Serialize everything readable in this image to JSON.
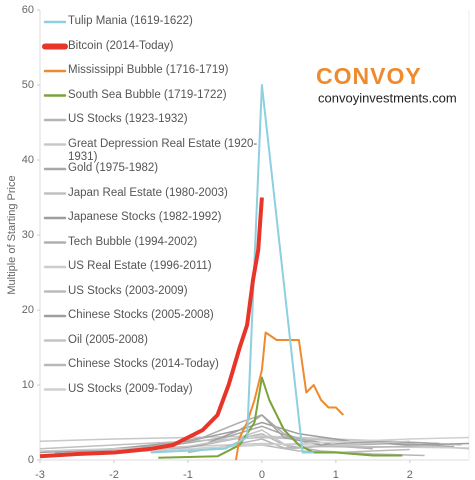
{
  "chart_data": {
    "type": "line",
    "ylabel": "Multiple of Starting Price",
    "annotations": [
      "CONVOY",
      "convoyinvestments.com"
    ],
    "xlim": [
      -3,
      2.8
    ],
    "ylim": [
      0,
      60
    ],
    "xticks": [
      -3,
      -2,
      -1,
      0,
      1,
      2
    ],
    "yticks": [
      0,
      10,
      20,
      30,
      40,
      50,
      60
    ],
    "series": [
      {
        "name": "Tulip Mania (1619-1622)",
        "color": "#8ecfe0",
        "width": 2,
        "x": [
          -1.5,
          -0.5,
          -0.2,
          0,
          0.55,
          0.7
        ],
        "values": [
          1,
          1.5,
          3,
          50,
          1,
          1
        ]
      },
      {
        "name": "Bitcoin (2014-Today)",
        "color": "#e8352a",
        "width": 4,
        "x": [
          -3,
          -2.5,
          -2,
          -1.5,
          -1.2,
          -1,
          -0.8,
          -0.6,
          -0.45,
          -0.3,
          -0.2,
          -0.12,
          -0.05,
          0
        ],
        "values": [
          0.5,
          0.8,
          1,
          1.5,
          2,
          3,
          4,
          6,
          10,
          15,
          18,
          24,
          28,
          35
        ]
      },
      {
        "name": "Mississippi Bubble (1716-1719)",
        "color": "#ef8a2e",
        "width": 2,
        "x": [
          -0.35,
          -0.3,
          -0.2,
          -0.1,
          0,
          0.05,
          0.2,
          0.4,
          0.5,
          0.6,
          0.7,
          0.8,
          0.9,
          1.0,
          1.1
        ],
        "values": [
          0,
          3,
          5,
          8,
          12,
          17,
          16,
          16,
          16,
          9,
          10,
          8,
          7,
          7,
          6
        ]
      },
      {
        "name": "South Sea Bubble (1719-1722)",
        "color": "#7aa33a",
        "width": 2,
        "x": [
          -1.4,
          -0.6,
          -0.3,
          -0.1,
          0,
          0.1,
          0.2,
          0.3,
          0.5,
          0.7,
          1,
          1.5,
          1.9
        ],
        "values": [
          0.3,
          0.5,
          2,
          5,
          11,
          8,
          6,
          4,
          2,
          1,
          1,
          0.6,
          0.6
        ]
      },
      {
        "name": "US Stocks (1923-1932)",
        "color": "#b5b5b5",
        "width": 1.5,
        "x": [
          -2.5,
          -1.5,
          -0.8,
          0,
          0.3,
          0.8,
          1.5,
          2.2
        ],
        "values": [
          1,
          1.3,
          2,
          3.5,
          2,
          1.2,
          0.8,
          0.6
        ]
      },
      {
        "name": "Great Depression Real Estate (1920-1931)",
        "color": "#c8c8c8",
        "width": 1.5,
        "x": [
          -3,
          -2,
          -1,
          0,
          1,
          2,
          2.7
        ],
        "values": [
          2.5,
          2.8,
          3,
          3.2,
          2.8,
          2.4,
          2
        ]
      },
      {
        "name": "Gold (1975-1982)",
        "color": "#a8a8a8",
        "width": 1.5,
        "x": [
          -2.8,
          -2,
          -1.2,
          -0.5,
          0,
          0.4,
          1,
          1.8,
          2.6
        ],
        "values": [
          1,
          1.5,
          2,
          3,
          4.5,
          3,
          2,
          2.2,
          1.8
        ]
      },
      {
        "name": "Japan Real Estate (1980-2003)",
        "color": "#c0c0c0",
        "width": 1.5,
        "x": [
          -3,
          -2,
          -1,
          0,
          1,
          2,
          2.8
        ],
        "values": [
          1.5,
          2,
          2.5,
          3,
          2.6,
          2,
          1.5
        ]
      },
      {
        "name": "Japanese Stocks (1982-1992)",
        "color": "#9e9e9e",
        "width": 1.5,
        "x": [
          -3,
          -2,
          -1,
          -0.3,
          0,
          0.5,
          1.2,
          2,
          2.8
        ],
        "values": [
          1,
          1.5,
          2.5,
          4,
          5,
          3.5,
          2.5,
          2,
          2.2
        ]
      },
      {
        "name": "Tech Bubble (1994-2002)",
        "color": "#b0b0b0",
        "width": 1.5,
        "x": [
          -2.5,
          -1.5,
          -0.8,
          -0.3,
          0,
          0.3,
          0.8,
          1.5
        ],
        "values": [
          1,
          1.8,
          3,
          5,
          6,
          3.5,
          2,
          1.5
        ]
      },
      {
        "name": "US Real Estate (1996-2011)",
        "color": "#cccccc",
        "width": 1.5,
        "x": [
          -3,
          -2,
          -1,
          0,
          1,
          2,
          2.8
        ],
        "values": [
          1.2,
          1.5,
          1.8,
          2.2,
          1.9,
          1.7,
          1.6
        ]
      },
      {
        "name": "US Stocks (2003-2009)",
        "color": "#bbbbbb",
        "width": 1.5,
        "x": [
          -2,
          -1,
          0,
          0.5,
          1,
          2
        ],
        "values": [
          1,
          1.5,
          2,
          1.2,
          1,
          1.4
        ]
      },
      {
        "name": "Chinese Stocks (2005-2008)",
        "color": "#a0a0a0",
        "width": 1.5,
        "x": [
          -1.5,
          -0.8,
          -0.3,
          0,
          0.3,
          0.8,
          1.5,
          2.4
        ],
        "values": [
          1,
          2,
          4,
          6,
          3,
          2,
          2.5,
          2.2
        ]
      },
      {
        "name": "Oil (2005-2008)",
        "color": "#c4c4c4",
        "width": 1.5,
        "x": [
          -2,
          -1,
          -0.3,
          0,
          0.4,
          1,
          2
        ],
        "values": [
          1,
          1.8,
          3,
          4,
          1.5,
          2,
          2.5
        ]
      },
      {
        "name": "Chinese Stocks (2014-Today)",
        "color": "#b8b8b8",
        "width": 1.5,
        "x": [
          -1,
          -0.5,
          0,
          0.3,
          0.8,
          1.5,
          2.2
        ],
        "values": [
          1,
          1.8,
          2.8,
          1.6,
          1.8,
          1.7,
          1.9
        ]
      },
      {
        "name": "US Stocks (2009-Today)",
        "color": "#d0d0d0",
        "width": 1.5,
        "x": [
          -3,
          -2,
          -1,
          0,
          1,
          2,
          2.8
        ],
        "values": [
          0.5,
          1,
          1.5,
          2,
          2.4,
          2.8,
          3
        ]
      }
    ]
  }
}
